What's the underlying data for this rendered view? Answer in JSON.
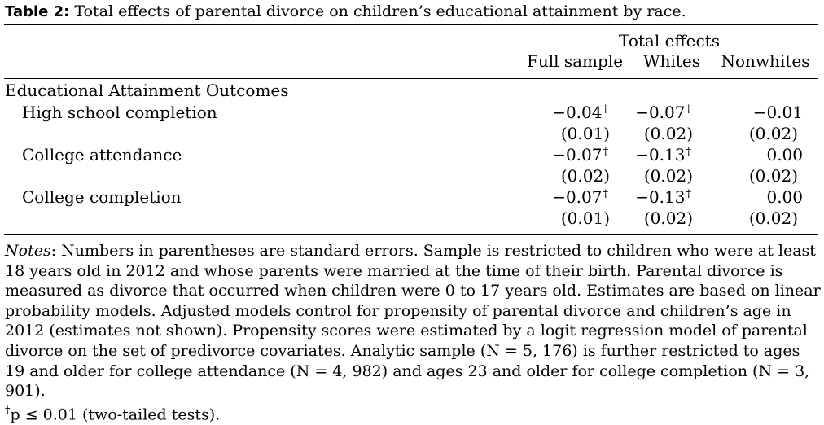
{
  "caption": {
    "label": "Table 2:",
    "text": "Total effects of parental divorce on children’s educational attainment by race."
  },
  "header": {
    "group_label": "Total effects",
    "columns": [
      "Full sample",
      "Whites",
      "Nonwhites"
    ]
  },
  "section_label": "Educational Attainment Outcomes",
  "rows": [
    {
      "outcome": "High school completion",
      "estimates": [
        "−0.04",
        "−0.07",
        "−0.01"
      ],
      "significant": [
        true,
        true,
        false
      ],
      "standard_errors": [
        "(0.01)",
        "(0.02)",
        "(0.02)"
      ]
    },
    {
      "outcome": "College attendance",
      "estimates": [
        "−0.07",
        "−0.13",
        "0.00"
      ],
      "significant": [
        true,
        true,
        false
      ],
      "standard_errors": [
        "(0.02)",
        "(0.02)",
        "(0.02)"
      ]
    },
    {
      "outcome": "College completion",
      "estimates": [
        "−0.07",
        "−0.13",
        "0.00"
      ],
      "significant": [
        true,
        true,
        false
      ],
      "standard_errors": [
        "(0.01)",
        "(0.02)",
        "(0.02)"
      ]
    }
  ],
  "significance_marker": "†",
  "notes": {
    "label": "Notes",
    "text": ": Numbers in parentheses are standard errors. Sample is restricted to children who were at least 18 years old in 2012 and whose parents were married at the time of their birth. Parental divorce is measured as divorce that occurred when children were 0 to 17 years old. Estimates are based on linear probability models. Adjusted models control for propensity of parental divorce and children’s age in 2012 (estimates not shown). Propensity scores were estimated by a logit regression model of parental divorce on the set of predivorce covariates. Analytic sample (N = 5, 176) is further restricted to ages 19 and older for college attendance (N = 4, 982) and ages 23 and older for college completion (N = 3, 901).",
    "footnote_marker": "†",
    "footnote_text": "p ≤ 0.01 (two-tailed tests)."
  }
}
